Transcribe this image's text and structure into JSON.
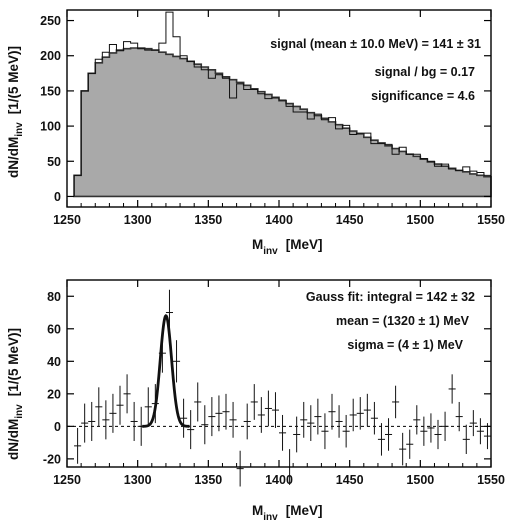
{
  "chart_data": [
    {
      "type": "histogram",
      "xlabel": "M_inv [MeV]",
      "ylabel": "dN/dM_inv [1/(5 MeV)]",
      "xlim": [
        1250,
        1550
      ],
      "ylim": [
        -15,
        265
      ],
      "x_ticks": [
        1250,
        1300,
        1350,
        1400,
        1450,
        1500,
        1550
      ],
      "y_ticks": [
        0,
        50,
        100,
        150,
        200,
        250
      ],
      "bin_width": 5,
      "bin_starts": [
        1255,
        1260,
        1265,
        1270,
        1275,
        1280,
        1285,
        1290,
        1295,
        1300,
        1305,
        1310,
        1315,
        1320,
        1325,
        1330,
        1335,
        1340,
        1345,
        1350,
        1355,
        1360,
        1365,
        1370,
        1375,
        1380,
        1385,
        1390,
        1395,
        1400,
        1405,
        1410,
        1415,
        1420,
        1425,
        1430,
        1435,
        1440,
        1445,
        1450,
        1455,
        1460,
        1465,
        1470,
        1475,
        1480,
        1485,
        1490,
        1495,
        1500,
        1505,
        1510,
        1515,
        1520,
        1525,
        1530,
        1535,
        1540,
        1545
      ],
      "series": [
        {
          "style": "filled-gray",
          "values": [
            30,
            150,
            175,
            190,
            198,
            204,
            208,
            210,
            211,
            211,
            210,
            208,
            205,
            202,
            199,
            196,
            192,
            188,
            184,
            180,
            175,
            170,
            166,
            162,
            158,
            153,
            149,
            145,
            141,
            136,
            132,
            128,
            124,
            119,
            115,
            111,
            106,
            102,
            97,
            93,
            89,
            84,
            80,
            76,
            72,
            68,
            64,
            60,
            57,
            53,
            49,
            46,
            43,
            40,
            37,
            35,
            32,
            30,
            28
          ]
        },
        {
          "style": "outline",
          "values": [
            30,
            150,
            175,
            195,
            205,
            216,
            207,
            220,
            218,
            210,
            208,
            208,
            218,
            262,
            227,
            200,
            192,
            184,
            180,
            168,
            173,
            168,
            140,
            160,
            152,
            152,
            146,
            139,
            140,
            137,
            128,
            120,
            120,
            110,
            117,
            109,
            112,
            96,
            101,
            88,
            90,
            90,
            75,
            75,
            74,
            60,
            70,
            60,
            60,
            54,
            50,
            43,
            46,
            39,
            37,
            42,
            36,
            34,
            30
          ]
        }
      ],
      "annotations": [
        "signal (mean ± 10.0 MeV) = 141 ± 31",
        "signal / bg = 0.17",
        "significance = 4.6"
      ]
    },
    {
      "type": "scatter-errorbar",
      "xlabel": "M_inv [MeV]",
      "ylabel": "dN/dM_inv [1/(5 MeV)]",
      "xlim": [
        1250,
        1550
      ],
      "ylim": [
        -25,
        90
      ],
      "x_ticks": [
        1250,
        1300,
        1350,
        1400,
        1450,
        1500,
        1550
      ],
      "y_ticks": [
        -20,
        0,
        20,
        40,
        60,
        80
      ],
      "x": [
        1255,
        1260,
        1265,
        1270,
        1275,
        1280,
        1285,
        1290,
        1295,
        1300,
        1305,
        1310,
        1315,
        1320,
        1325,
        1330,
        1335,
        1340,
        1345,
        1350,
        1355,
        1360,
        1365,
        1370,
        1375,
        1380,
        1385,
        1390,
        1395,
        1400,
        1405,
        1410,
        1415,
        1420,
        1425,
        1430,
        1435,
        1440,
        1445,
        1450,
        1455,
        1460,
        1465,
        1470,
        1475,
        1480,
        1485,
        1490,
        1495,
        1500,
        1505,
        1510,
        1515,
        1520,
        1525,
        1530,
        1535,
        1540,
        1545
      ],
      "y": [
        -12,
        2,
        3,
        12,
        4,
        8,
        13,
        20,
        3,
        0,
        12,
        14,
        45,
        70,
        40,
        5,
        -2,
        15,
        1,
        6,
        8,
        9,
        4,
        -26,
        3,
        15,
        7,
        11,
        10,
        -4,
        -25,
        -5,
        4,
        2,
        6,
        -3,
        9,
        3,
        -3,
        7,
        8,
        10,
        5,
        -8,
        -5,
        15,
        -14,
        -11,
        4,
        -3,
        -1,
        -5,
        0,
        23,
        6,
        -8,
        2,
        -3,
        -6
      ],
      "error": [
        11,
        12,
        12,
        12,
        12,
        12,
        12,
        12,
        12,
        12,
        12,
        12,
        12,
        14,
        13,
        12,
        12,
        12,
        12,
        12,
        11,
        11,
        11,
        11,
        11,
        11,
        11,
        11,
        11,
        11,
        11,
        11,
        11,
        11,
        11,
        11,
        11,
        10,
        10,
        10,
        10,
        10,
        10,
        10,
        10,
        10,
        10,
        9,
        9,
        9,
        9,
        9,
        9,
        9,
        9,
        9,
        8,
        8,
        8
      ],
      "fit": {
        "type": "gauss",
        "mean": 1320,
        "sigma": 4,
        "peak": 68
      },
      "annotations": [
        "Gauss fit:  integral = 142 ± 32",
        "mean = (1320 ± 1) MeV",
        "sigma = (4 ± 1) MeV"
      ]
    }
  ],
  "text": {
    "ylabel_main": "dN/dM",
    "ylabel_sub": "inv",
    "ylabel_unit": "[1/(5 MeV)]",
    "xlabel_main": "M",
    "xlabel_sub": "inv",
    "xlabel_unit": "[MeV]"
  },
  "colors": {
    "fill": "#a9a9a9",
    "line": "#111111",
    "axis": "#000000"
  }
}
